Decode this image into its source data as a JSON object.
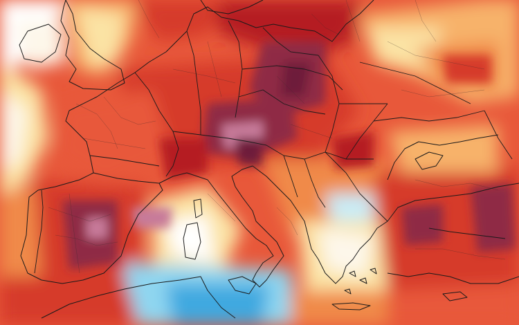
{
  "map": {
    "type": "temperature-anomaly",
    "region": "Europe",
    "palette": {
      "deep_maroon": "#6e1f3a",
      "maroon": "#8f2a45",
      "mauve_peak": "#c77a9a",
      "dark_red": "#b51f24",
      "red": "#d63a2a",
      "red_orange": "#e8583a",
      "orange": "#f08a4a",
      "light_orange": "#f7b26a",
      "pale_yellow": "#fbe3a4",
      "near_white": "#fdf7ea",
      "white": "#ffffff",
      "pale_blue": "#c8ecf7",
      "light_blue": "#8fd6f0",
      "blue": "#3fa9e0",
      "dark_blue": "#1f5fb8",
      "border_black": "#1a1a1a"
    }
  }
}
